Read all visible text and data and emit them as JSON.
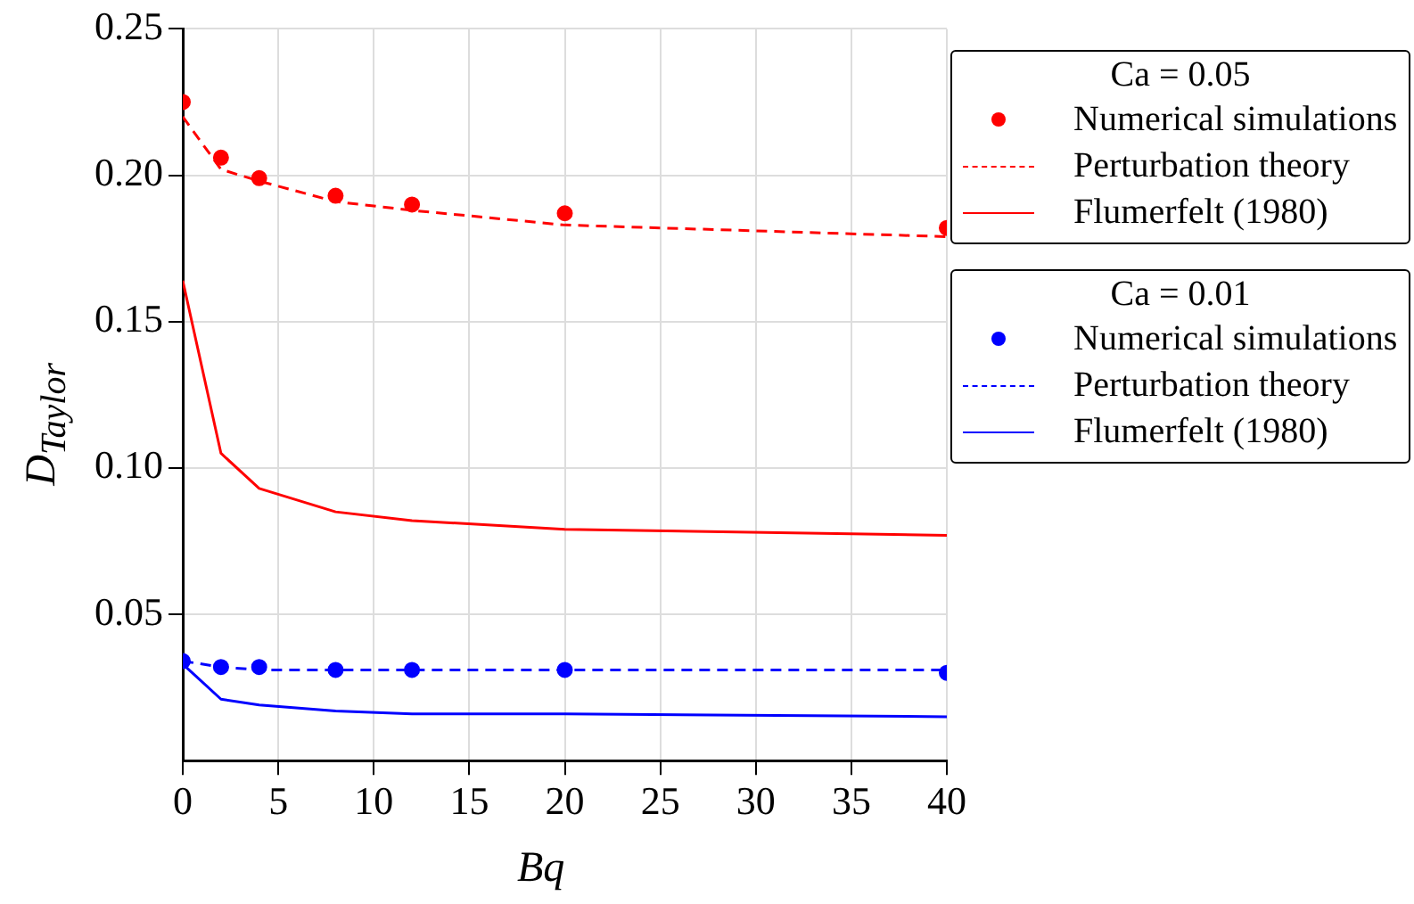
{
  "chart_data": {
    "type": "line",
    "xlabel": "Bq",
    "ylabel": "D$_{Taylor}$",
    "x": [
      0,
      2,
      4,
      8,
      12,
      20,
      40
    ],
    "xlim": [
      0,
      40
    ],
    "xticks": [
      0,
      5,
      10,
      15,
      20,
      25,
      30,
      35,
      40
    ],
    "ylim": [
      0,
      0.25
    ],
    "yticks": [
      {
        "value": 0.05,
        "label": "0.05"
      },
      {
        "value": 0.1,
        "label": "0.10"
      },
      {
        "value": 0.15,
        "label": "0.15"
      },
      {
        "value": 0.2,
        "label": "0.20"
      },
      {
        "value": 0.25,
        "label": "0.25"
      }
    ],
    "grid": true,
    "legend": "right",
    "annotations": [
      "Ca = 0.05",
      "Ca = 0.01"
    ],
    "series": [
      {
        "name": "Numerical simulations",
        "type": "scatter",
        "marker": "circle",
        "color": "#ff0000",
        "values": [
          0.225,
          0.206,
          0.199,
          0.193,
          0.19,
          0.187,
          0.182
        ]
      },
      {
        "name": "Perturbation theory",
        "line_style": "dashed",
        "color": "#ff0000",
        "values": [
          0.22,
          0.202,
          0.198,
          0.191,
          0.188,
          0.183,
          0.179
        ]
      },
      {
        "name": "Flumerfelt (1980)",
        "line_style": "solid",
        "color": "#ff0000",
        "values": [
          0.164,
          0.105,
          0.093,
          0.085,
          0.082,
          0.079,
          0.077
        ]
      },
      {
        "name": "Numerical simulations",
        "type": "scatter",
        "marker": "circle",
        "color": "#0000ff",
        "values": [
          0.034,
          0.032,
          0.032,
          0.031,
          0.031,
          0.031,
          0.03
        ]
      },
      {
        "name": "Perturbation theory",
        "line_style": "dashed",
        "color": "#0000ff",
        "values": [
          0.034,
          0.032,
          0.031,
          0.031,
          0.031,
          0.031,
          0.031
        ]
      },
      {
        "name": "Flumerfelt (1980)",
        "line_style": "solid",
        "color": "#0000ff",
        "values": [
          0.033,
          0.021,
          0.019,
          0.017,
          0.016,
          0.016,
          0.015
        ]
      }
    ]
  }
}
